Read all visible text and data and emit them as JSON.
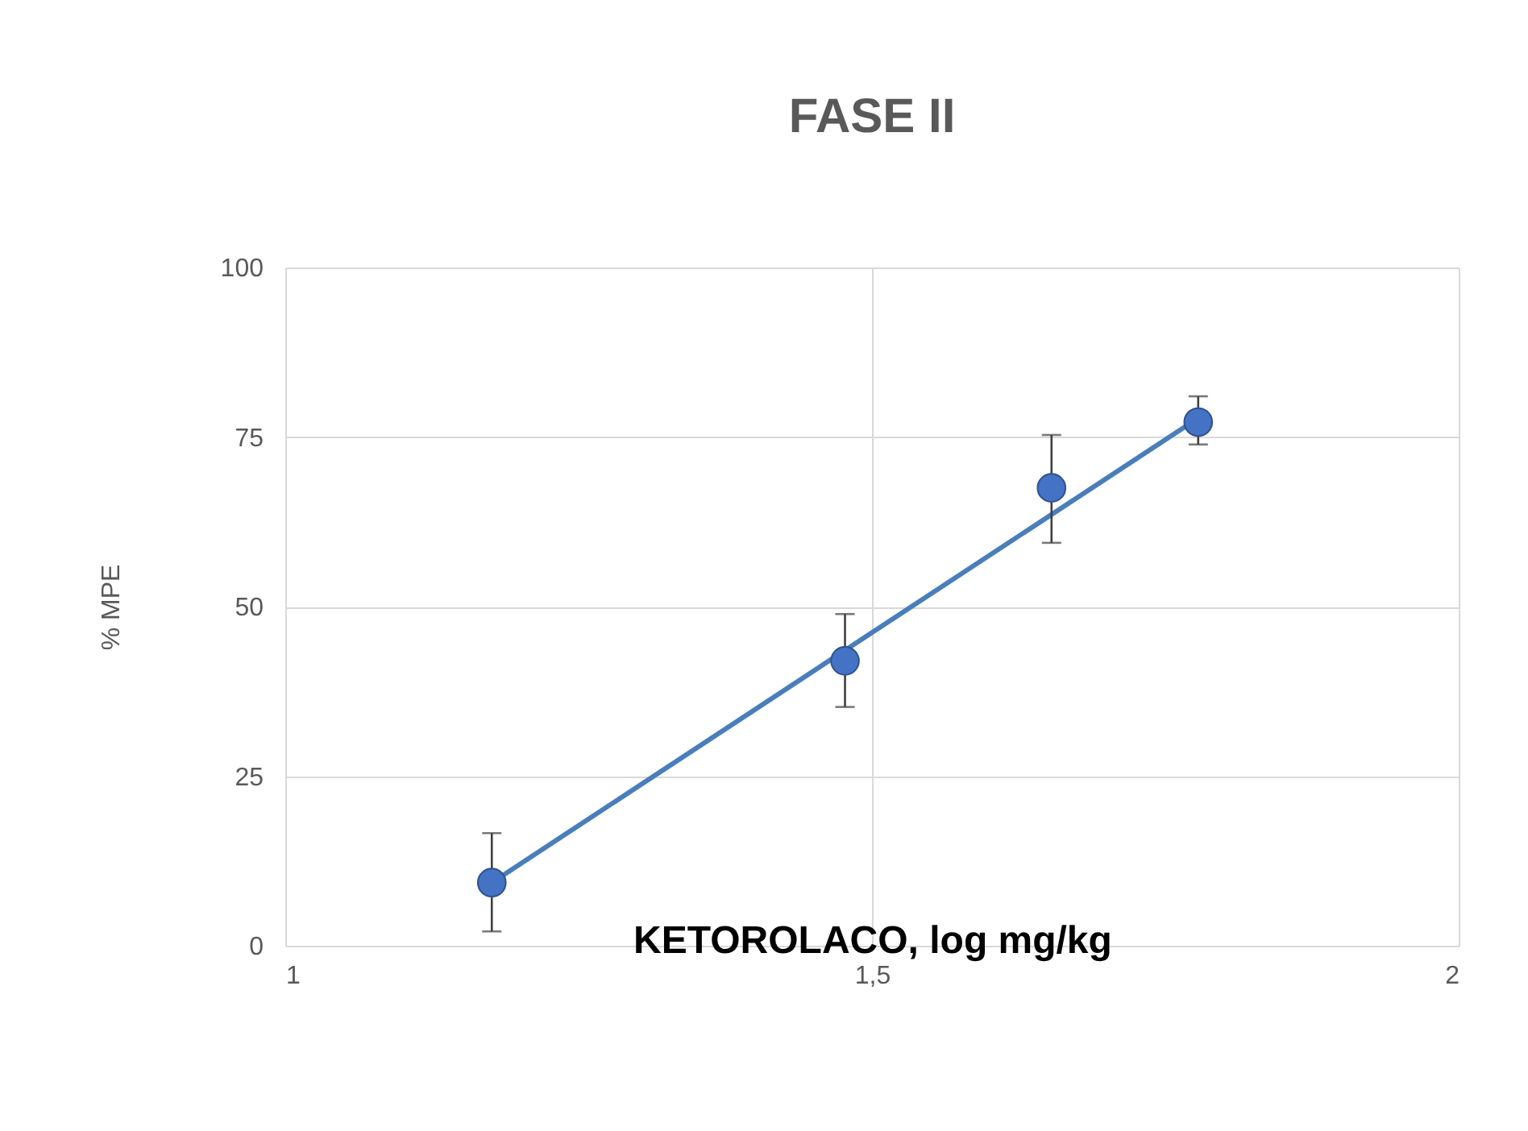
{
  "chart_data": {
    "type": "scatter",
    "title": "FASE II",
    "xlabel": "KETOROLACO, log mg/kg",
    "ylabel": "% MPE",
    "xlim": [
      1,
      2
    ],
    "xticks": [
      1,
      {
        "value": 1.5,
        "label": "1,5"
      },
      2
    ],
    "ylim": [
      0,
      100
    ],
    "yticks": [
      0,
      25,
      50,
      75,
      100
    ],
    "grid": true,
    "series": [
      {
        "marker": "circle",
        "color": "#4472c4",
        "x": [
          1.176,
          1.477,
          1.653,
          1.778
        ],
        "values": [
          9.3,
          42,
          67.5,
          77.2
        ],
        "errors": [
          [
            2.1,
            16.6
          ],
          [
            35.2,
            48.9
          ],
          [
            59.4,
            75.3
          ],
          [
            73.9,
            81
          ]
        ]
      },
      {
        "type": "line",
        "marker": "none",
        "color": "#4a7ebb",
        "x": [
          1.176,
          1.778
        ],
        "values": [
          9.3,
          77.8
        ]
      }
    ]
  }
}
